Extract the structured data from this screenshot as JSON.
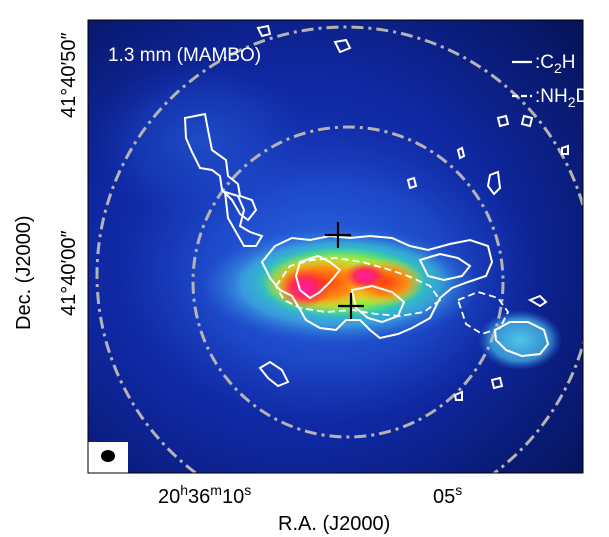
{
  "panel_label": "1.3 mm (MAMBO)",
  "legend": {
    "solid_label": ":C",
    "solid_sub": "2",
    "solid_tail": "H",
    "dashed_label": ":NH",
    "dashed_sub": "2",
    "dashed_tail": "D"
  },
  "axes": {
    "xlabel": "R.A. (J2000)",
    "ylabel": "Dec. (J2000)",
    "x_ticks": {
      "t1_h": "20",
      "t1_m": "36",
      "t1_s": "10",
      "t2_s": "05",
      "h_unit": "h",
      "m_unit": "m",
      "s_unit": "s"
    },
    "y_ticks": {
      "t1": "41°40′50″",
      "t2": "41°40′00″"
    }
  },
  "markers": [
    {
      "name": "plus-marker-north"
    },
    {
      "name": "plus-marker-south"
    }
  ],
  "colors": {
    "frame_bg": "#0a1a6e",
    "contour": "#ffffff",
    "circle": "#b4b4b4",
    "marker": "#000000"
  }
}
